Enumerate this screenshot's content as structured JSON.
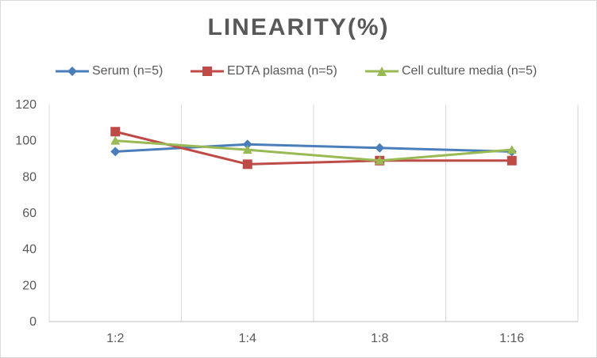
{
  "chart_data": {
    "type": "line",
    "title": "LINEARITY(%)",
    "categories": [
      "1:2",
      "1:4",
      "1:8",
      "1:16"
    ],
    "ylim": [
      0,
      120
    ],
    "yticks": [
      0,
      20,
      40,
      60,
      80,
      100,
      120
    ],
    "grid": "vertical",
    "legend_position": "top",
    "series": [
      {
        "name": "Serum (n=5)",
        "values": [
          94,
          98,
          96,
          94
        ],
        "color": "#4a7ebb",
        "marker": "diamond"
      },
      {
        "name": "EDTA plasma (n=5)",
        "values": [
          105,
          87,
          89,
          89
        ],
        "color": "#be4b48",
        "marker": "square"
      },
      {
        "name": "Cell culture media (n=5)",
        "values": [
          100,
          95,
          89,
          95
        ],
        "color": "#98b954",
        "marker": "triangle"
      }
    ]
  }
}
